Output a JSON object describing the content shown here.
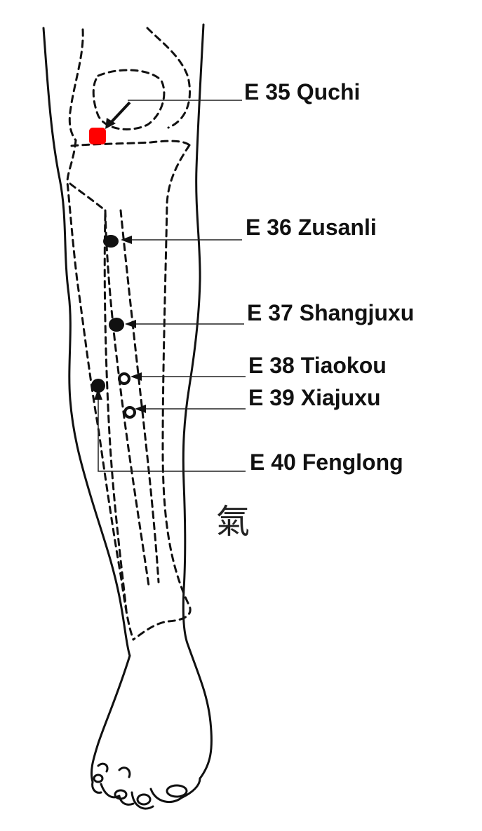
{
  "points": [
    {
      "code": "E 35",
      "name": "Quchi",
      "marker": "filled",
      "color": "#ff0000"
    },
    {
      "code": "E 36",
      "name": "Zusanli",
      "marker": "filled",
      "color": "#111111"
    },
    {
      "code": "E 37",
      "name": "Shangjuxu",
      "marker": "filled",
      "color": "#111111"
    },
    {
      "code": "E 38",
      "name": "Tiaokou",
      "marker": "ring",
      "color": "#111111"
    },
    {
      "code": "E 39",
      "name": "Xiajuxu",
      "marker": "ring",
      "color": "#111111"
    },
    {
      "code": "E 40",
      "name": "Fenglong",
      "marker": "filled",
      "color": "#111111"
    }
  ],
  "labels": {
    "e35": "E 35 Quchi",
    "e36": "E 36 Zusanli",
    "e37": "E 37 Shangjuxu",
    "e38": "E 38 Tiaokou",
    "e39": "E 39 Xiajuxu",
    "e40": "E 40 Fenglong"
  },
  "seal": "氣",
  "colors": {
    "highlight": "#ff0000",
    "ink": "#111111",
    "background": "#ffffff"
  }
}
